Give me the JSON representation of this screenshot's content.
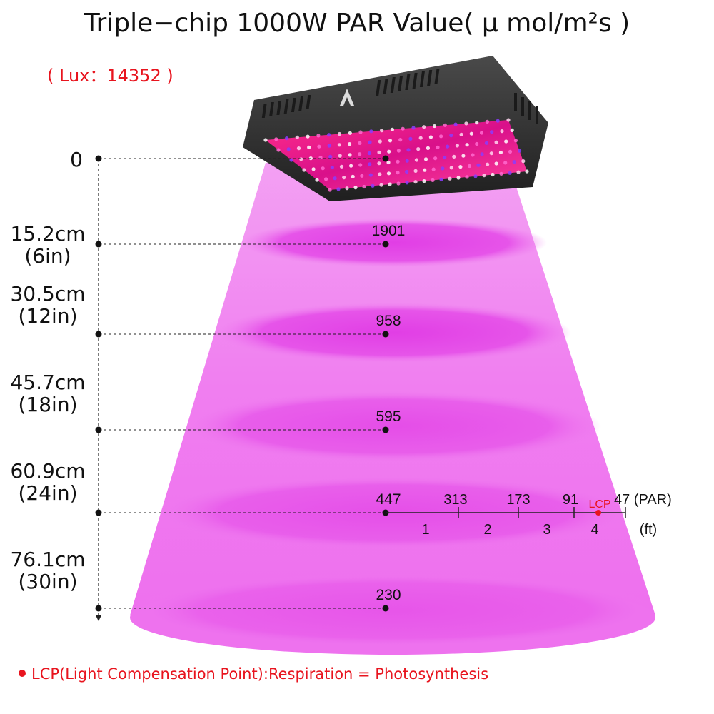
{
  "title": "Triple−chip 1000W PAR Value( μ mol/m²s )",
  "lux": {
    "open": "( ",
    "label": "Lux",
    "sep": "：",
    "value": "14352",
    "close": " )"
  },
  "heights": [
    {
      "line1": "0",
      "line2": "",
      "par": ""
    },
    {
      "line1": "15.2cm",
      "line2": "(6in)",
      "par": "1901"
    },
    {
      "line1": "30.5cm",
      "line2": "(12in)",
      "par": "958"
    },
    {
      "line1": "45.7cm",
      "line2": "(18in)",
      "par": "595"
    },
    {
      "line1": "60.9cm",
      "line2": "(24in)",
      "par": "447"
    },
    {
      "line1": "76.1cm",
      "line2": "(30in)",
      "par": "230"
    }
  ],
  "horizontal_scale": {
    "values": [
      "313",
      "173",
      "91",
      "47 (PAR)"
    ],
    "feet": [
      "1",
      "2",
      "3",
      "4",
      "(ft)"
    ],
    "lcp_label": "LCP"
  },
  "note": "LCP(Light Compensation Point):Respiration = Photosynthesis",
  "colors": {
    "beam": "#f06cf0",
    "ring": "#e53de8",
    "accent": "#e8141e",
    "lamp_body": "#2b2b2b",
    "panel": "#d81b6e"
  },
  "icons": [
    "grow-light-lamp-icon",
    "brand-logo-icon"
  ]
}
